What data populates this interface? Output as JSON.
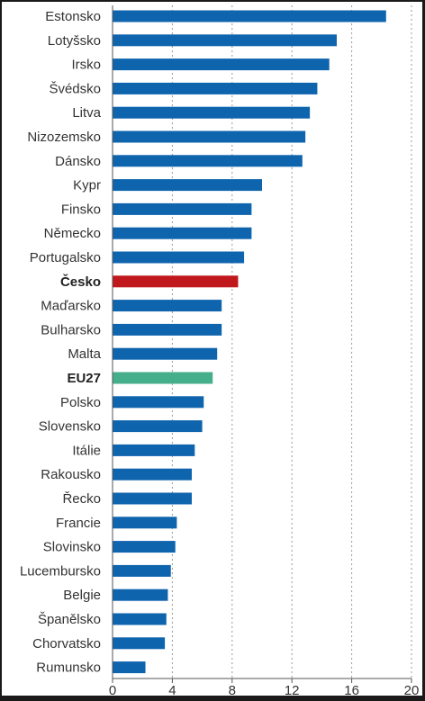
{
  "chart_data": {
    "type": "bar",
    "orientation": "horizontal",
    "categories": [
      "Estonsko",
      "Lotyšsko",
      "Irsko",
      "Švédsko",
      "Litva",
      "Nizozemsko",
      "Dánsko",
      "Kypr",
      "Finsko",
      "Německo",
      "Portugalsko",
      "Česko",
      "Maďarsko",
      "Bulharsko",
      "Malta",
      "EU27",
      "Polsko",
      "Slovensko",
      "Itálie",
      "Rakousko",
      "Řecko",
      "Francie",
      "Slovinsko",
      "Lucembursko",
      "Belgie",
      "Španělsko",
      "Chorvatsko",
      "Rumunsko"
    ],
    "values": [
      18.3,
      15.0,
      14.5,
      13.7,
      13.2,
      12.9,
      12.7,
      10.0,
      9.3,
      9.3,
      8.8,
      8.4,
      7.3,
      7.3,
      7.0,
      6.7,
      6.1,
      6.0,
      5.5,
      5.3,
      5.3,
      4.3,
      4.2,
      3.9,
      3.7,
      3.6,
      3.5,
      2.2
    ],
    "highlight": {
      "Česko": "#c0181d",
      "EU27": "#45ae8a"
    },
    "default_color": "#0f64ae",
    "bold_labels": [
      "Česko",
      "EU27"
    ],
    "xlim": [
      0,
      20
    ],
    "xticks": [
      0,
      4,
      8,
      12,
      16,
      20
    ],
    "title": "",
    "xlabel": "",
    "ylabel": "",
    "grid": "vertical dotted",
    "legend": "none"
  }
}
